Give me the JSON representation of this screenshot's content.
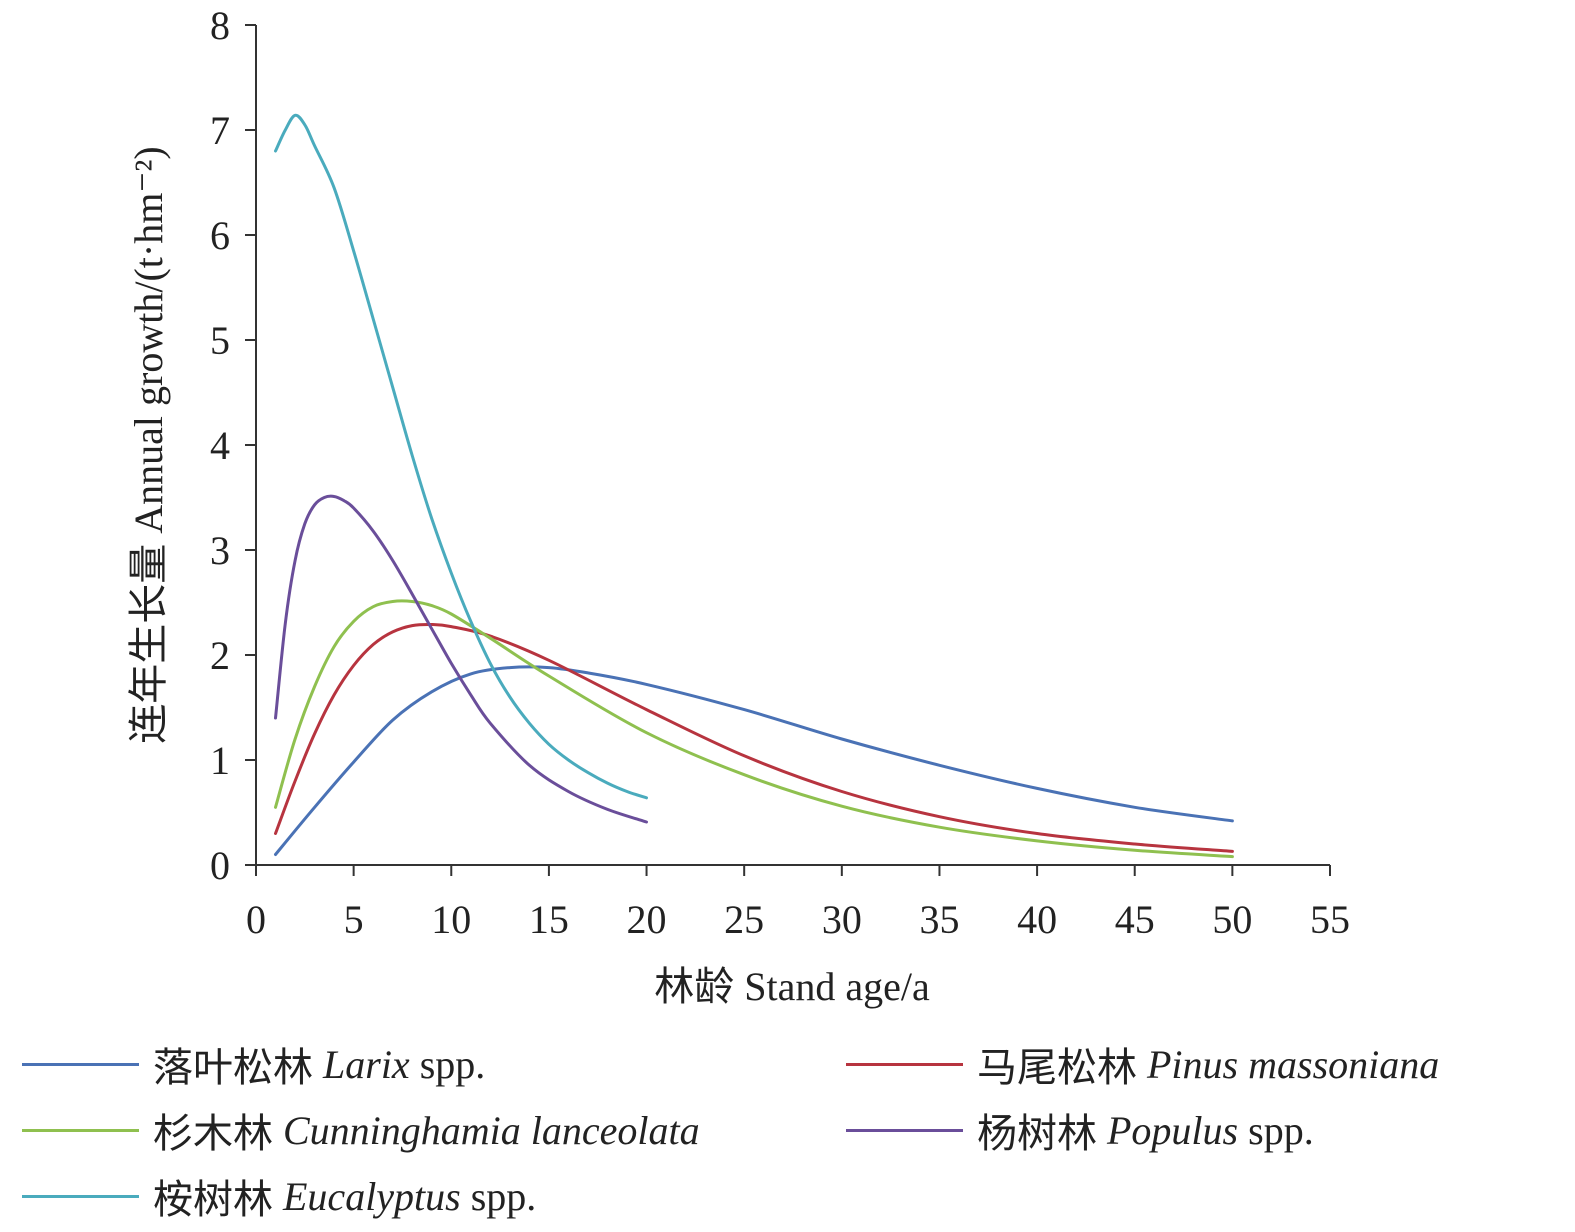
{
  "chart_data": {
    "type": "line",
    "title": "",
    "xlabel": "林龄 Stand age/a",
    "ylabel": "连年生长量 Annual growth/(t·hm⁻²)",
    "xlim": [
      0,
      55
    ],
    "ylim": [
      0,
      8
    ],
    "xticks": [
      0,
      5,
      10,
      15,
      20,
      25,
      30,
      35,
      40,
      45,
      50,
      55
    ],
    "yticks": [
      0,
      1,
      2,
      3,
      4,
      5,
      6,
      7,
      8
    ],
    "grid": false,
    "legend_position": "bottom",
    "series": [
      {
        "name": "落叶松林 Larix spp.",
        "cn": "落叶松林",
        "sci": "Larix",
        "suffix": "spp.",
        "color": "#4a72b5",
        "x": [
          1,
          3,
          5,
          7,
          9,
          11,
          13,
          15,
          17,
          20,
          25,
          30,
          35,
          40,
          45,
          50
        ],
        "y": [
          0.1,
          0.55,
          0.98,
          1.38,
          1.65,
          1.82,
          1.88,
          1.88,
          1.83,
          1.72,
          1.48,
          1.2,
          0.95,
          0.73,
          0.55,
          0.42
        ]
      },
      {
        "name": "马尾松林 Pinus massoniana",
        "cn": "马尾松林",
        "sci": "Pinus massoniana",
        "suffix": "",
        "color": "#b7343f",
        "x": [
          1,
          2,
          3,
          4,
          5,
          6,
          7,
          8,
          9,
          10,
          12,
          15,
          20,
          25,
          30,
          35,
          40,
          45,
          50
        ],
        "y": [
          0.3,
          0.8,
          1.25,
          1.62,
          1.9,
          2.1,
          2.22,
          2.28,
          2.29,
          2.27,
          2.18,
          1.95,
          1.48,
          1.04,
          0.7,
          0.46,
          0.3,
          0.2,
          0.13
        ]
      },
      {
        "name": "杉木林 Cunninghamia lanceolata",
        "cn": "杉木林",
        "sci": "Cunninghamia lanceolata",
        "suffix": "",
        "color": "#8fc04f",
        "x": [
          1,
          2,
          3,
          4,
          5,
          6,
          7,
          8,
          9,
          10,
          12,
          15,
          20,
          25,
          30,
          35,
          40,
          45,
          50
        ],
        "y": [
          0.55,
          1.2,
          1.7,
          2.08,
          2.32,
          2.46,
          2.51,
          2.51,
          2.47,
          2.39,
          2.16,
          1.8,
          1.26,
          0.86,
          0.56,
          0.36,
          0.23,
          0.14,
          0.08
        ]
      },
      {
        "name": "杨树林 Populus spp.",
        "cn": "杨树林",
        "sci": "Populus",
        "suffix": "spp.",
        "color": "#6a4e9a",
        "x": [
          1,
          1.5,
          2,
          2.5,
          3,
          3.5,
          4,
          4.5,
          5,
          6,
          7,
          8,
          9,
          10,
          11,
          12,
          14,
          16,
          18,
          20
        ],
        "y": [
          1.4,
          2.3,
          2.9,
          3.25,
          3.43,
          3.5,
          3.51,
          3.47,
          3.4,
          3.18,
          2.9,
          2.58,
          2.25,
          1.92,
          1.62,
          1.35,
          0.95,
          0.7,
          0.53,
          0.41
        ]
      },
      {
        "name": "桉树林 Eucalyptus spp.",
        "cn": "桉树林",
        "sci": "Eucalyptus",
        "suffix": "spp.",
        "color": "#4aabbd",
        "x": [
          1,
          1.5,
          2,
          2.5,
          3,
          4,
          5,
          6,
          7,
          8,
          9,
          10,
          11,
          12,
          13,
          14,
          15,
          16,
          17,
          18,
          19,
          20
        ],
        "y": [
          6.8,
          7.0,
          7.14,
          7.05,
          6.85,
          6.45,
          5.85,
          5.2,
          4.55,
          3.9,
          3.3,
          2.78,
          2.32,
          1.92,
          1.6,
          1.35,
          1.15,
          1.0,
          0.88,
          0.78,
          0.7,
          0.64
        ]
      }
    ]
  }
}
